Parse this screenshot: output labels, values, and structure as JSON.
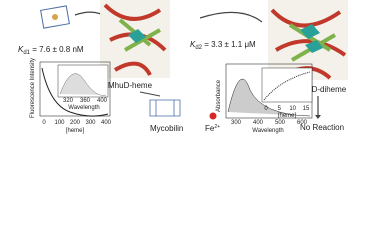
{
  "kd1": {
    "symbol": "K",
    "subscript": "d1",
    "text": " = 7.6 ± 0.8 nM"
  },
  "kd2": {
    "symbol": "K",
    "subscript": "d2",
    "text": " = 3.3 ± 1.1 μM"
  },
  "complex1": "MhuD-heme",
  "complex2": "MhuD-diheme",
  "product1": "Mycobilin",
  "product2": {
    "text": "Fe",
    "superscript": "2+"
  },
  "outcome": "No Reaction",
  "left_plot": {
    "ylabel": "Fluorescence Intensity",
    "xlabel": "[heme]",
    "xticks": [
      0,
      100,
      200,
      300,
      400
    ],
    "inset": {
      "xlabel": "Wavelength",
      "xticks": [
        320,
        360,
        400
      ]
    }
  },
  "right_plot": {
    "ylabel": "Absorbance",
    "xlabel": "Wavelength",
    "xticks": [
      300,
      400,
      500,
      600
    ],
    "inset": {
      "xlabel": "[heme]",
      "xticks": [
        0,
        5,
        10,
        15
      ]
    }
  }
}
